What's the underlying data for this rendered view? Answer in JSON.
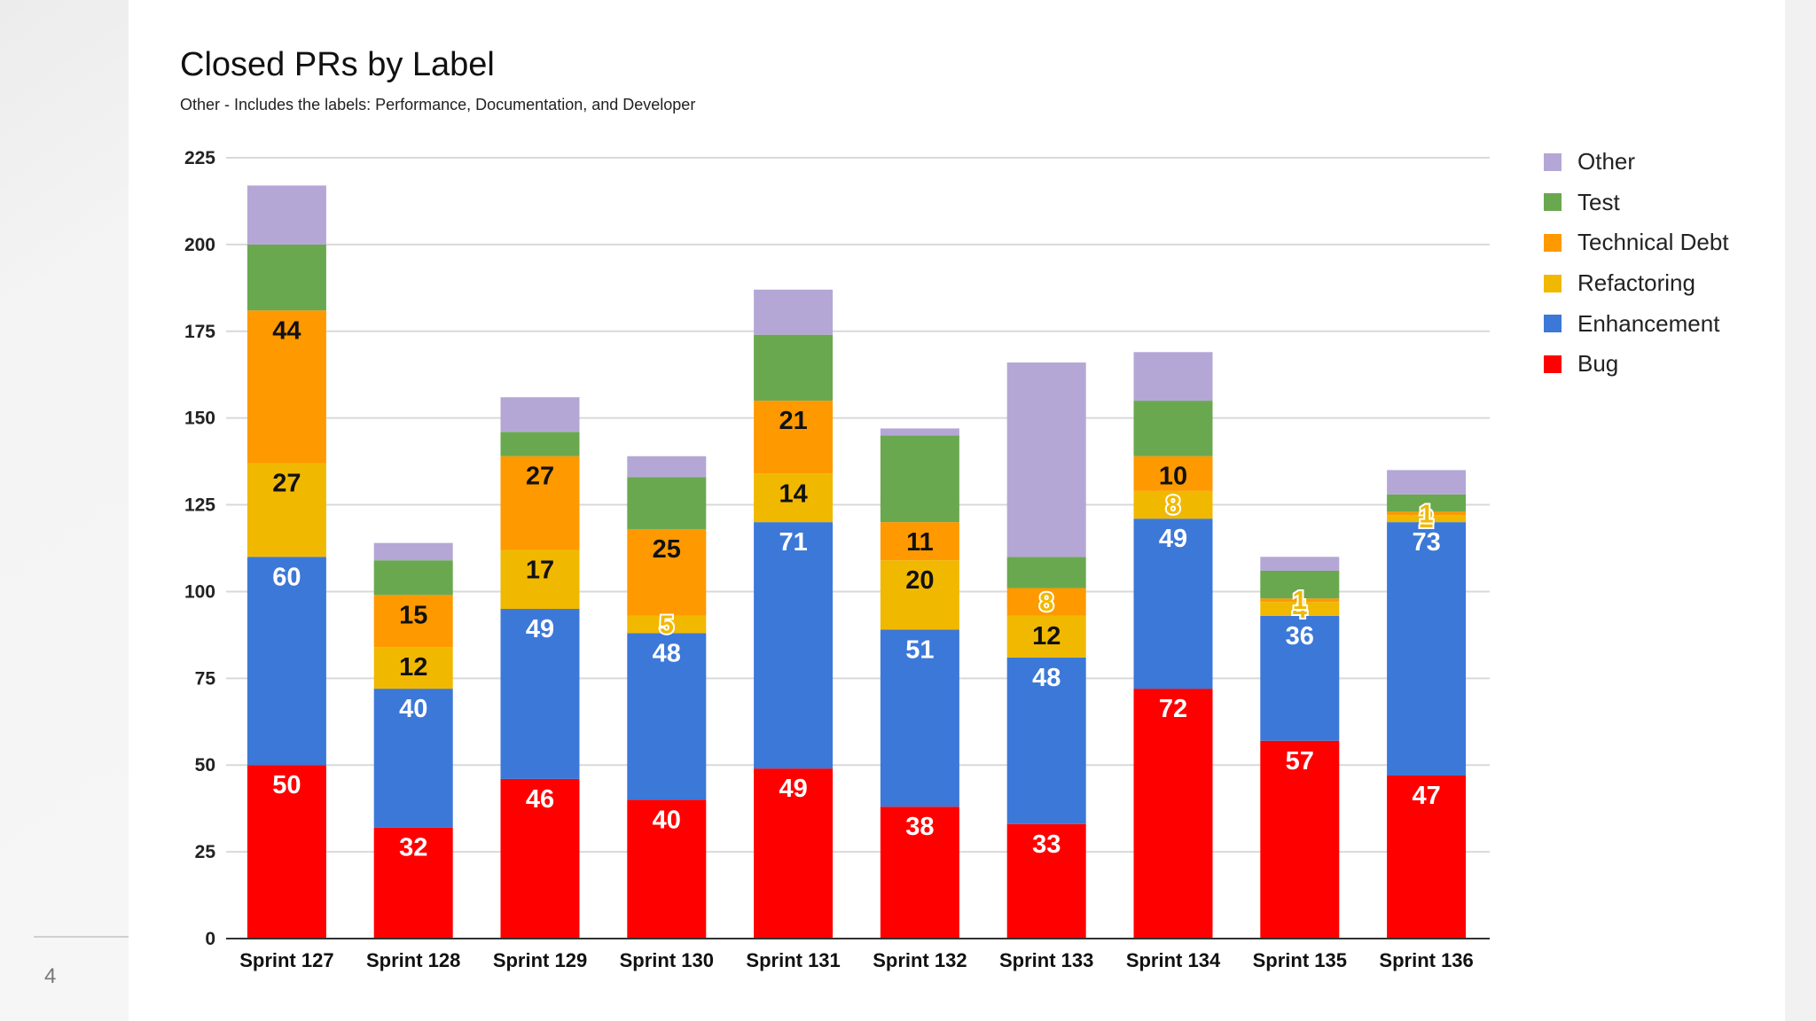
{
  "slide": {
    "number": "4"
  },
  "chart_data": {
    "type": "bar",
    "stacked": true,
    "title": "Closed PRs by Label",
    "subtitle": "Other - Includes the labels: Performance, Documentation, and Developer",
    "xlabel": "",
    "ylabel": "",
    "ylim": [
      0,
      225
    ],
    "yticks": [
      "0",
      "25",
      "50",
      "75",
      "100",
      "125",
      "150",
      "175",
      "200",
      "225"
    ],
    "grid": true,
    "legend_position": "right",
    "categories": [
      "Sprint 127",
      "Sprint 128",
      "Sprint 129",
      "Sprint 130",
      "Sprint 131",
      "Sprint 132",
      "Sprint 133",
      "Sprint 134",
      "Sprint 135",
      "Sprint 136"
    ],
    "series": [
      {
        "name": "Bug",
        "color": "#ff0000",
        "values": [
          50,
          32,
          46,
          40,
          49,
          38,
          33,
          72,
          57,
          47
        ],
        "labels": [
          "50",
          "32",
          "46",
          "40",
          "49",
          "38",
          "33",
          "72",
          "57",
          "47"
        ]
      },
      {
        "name": "Enhancement",
        "color": "#3c78d8",
        "values": [
          60,
          40,
          49,
          48,
          71,
          51,
          48,
          49,
          36,
          73
        ],
        "labels": [
          "60",
          "40",
          "49",
          "48",
          "71",
          "51",
          "48",
          "49",
          "36",
          "73"
        ]
      },
      {
        "name": "Refactoring",
        "color": "#f1b800",
        "values": [
          27,
          12,
          17,
          5,
          14,
          20,
          12,
          8,
          4,
          2
        ],
        "labels": [
          "27",
          "12",
          "17",
          "5",
          "14",
          "20",
          "12",
          "8",
          "4",
          "2"
        ]
      },
      {
        "name": "Technical Debt",
        "color": "#ff9900",
        "values": [
          44,
          15,
          27,
          25,
          21,
          11,
          8,
          10,
          1,
          1
        ],
        "labels": [
          "44",
          "15",
          "27",
          "25",
          "21",
          "11",
          "8",
          "10",
          "1",
          "1"
        ]
      },
      {
        "name": "Test",
        "color": "#6aa84f",
        "values": [
          19,
          10,
          7,
          15,
          19,
          25,
          9,
          16,
          8,
          5
        ],
        "labels": [
          "",
          "",
          "",
          "",
          "",
          "",
          "",
          "",
          "",
          ""
        ]
      },
      {
        "name": "Other",
        "color": "#b4a7d6",
        "values": [
          17,
          5,
          10,
          6,
          13,
          2,
          56,
          14,
          4,
          7
        ],
        "labels": [
          "",
          "",
          "",
          "",
          "",
          "",
          "",
          "",
          "",
          ""
        ]
      }
    ]
  }
}
